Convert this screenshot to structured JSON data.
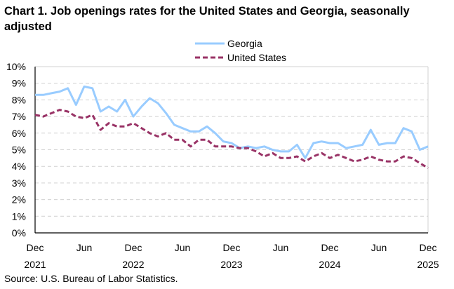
{
  "chart_data": {
    "type": "line",
    "title": "Chart 1. Job openings rates for the United States and Georgia, seasonally adjusted",
    "source": "Source: U.S. Bureau of Labor Statistics.",
    "x_start": "Dec 2021",
    "x_end": "Dec 2025",
    "x_tick_labels": [
      {
        "month": "Dec",
        "year": "2021"
      },
      {
        "month": "Jun",
        "year": ""
      },
      {
        "month": "Dec",
        "year": "2022"
      },
      {
        "month": "Jun",
        "year": ""
      },
      {
        "month": "Dec",
        "year": "2023"
      },
      {
        "month": "Jun",
        "year": ""
      },
      {
        "month": "Dec",
        "year": "2024"
      },
      {
        "month": "Jun",
        "year": ""
      },
      {
        "month": "Dec",
        "year": "2025"
      }
    ],
    "y_ticks": [
      "0%",
      "1%",
      "2%",
      "3%",
      "4%",
      "5%",
      "6%",
      "7%",
      "8%",
      "9%",
      "10%"
    ],
    "ylim": [
      0,
      10
    ],
    "grid": true,
    "legend_placement": "top-center",
    "series": [
      {
        "name": "Georgia",
        "color": "#99CCFF",
        "style": "solid",
        "values": [
          8.3,
          8.3,
          8.4,
          8.5,
          8.7,
          7.7,
          8.8,
          8.7,
          7.3,
          7.6,
          7.3,
          8.0,
          7.0,
          7.6,
          8.1,
          7.8,
          7.2,
          6.5,
          6.3,
          6.1,
          6.1,
          6.4,
          6.0,
          5.5,
          5.4,
          5.1,
          5.2,
          5.1,
          5.2,
          5.0,
          4.9,
          4.9,
          5.3,
          4.5,
          5.4,
          5.5,
          5.4,
          5.4,
          5.1,
          5.2,
          5.3,
          6.2,
          5.3,
          5.4,
          5.4,
          6.3,
          6.1,
          5.0,
          5.2
        ]
      },
      {
        "name": "United States",
        "color": "#993366",
        "style": "dashed",
        "values": [
          7.1,
          7.0,
          7.2,
          7.4,
          7.3,
          7.0,
          6.9,
          7.1,
          6.2,
          6.6,
          6.4,
          6.4,
          6.6,
          6.3,
          6.0,
          5.8,
          6.0,
          5.6,
          5.6,
          5.2,
          5.6,
          5.6,
          5.2,
          5.2,
          5.2,
          5.1,
          5.1,
          4.9,
          4.6,
          4.8,
          4.5,
          4.5,
          4.6,
          4.3,
          4.6,
          4.8,
          4.5,
          4.7,
          4.5,
          4.3,
          4.4,
          4.6,
          4.4,
          4.3,
          4.3,
          4.6,
          4.5,
          4.2,
          3.9
        ]
      }
    ]
  }
}
